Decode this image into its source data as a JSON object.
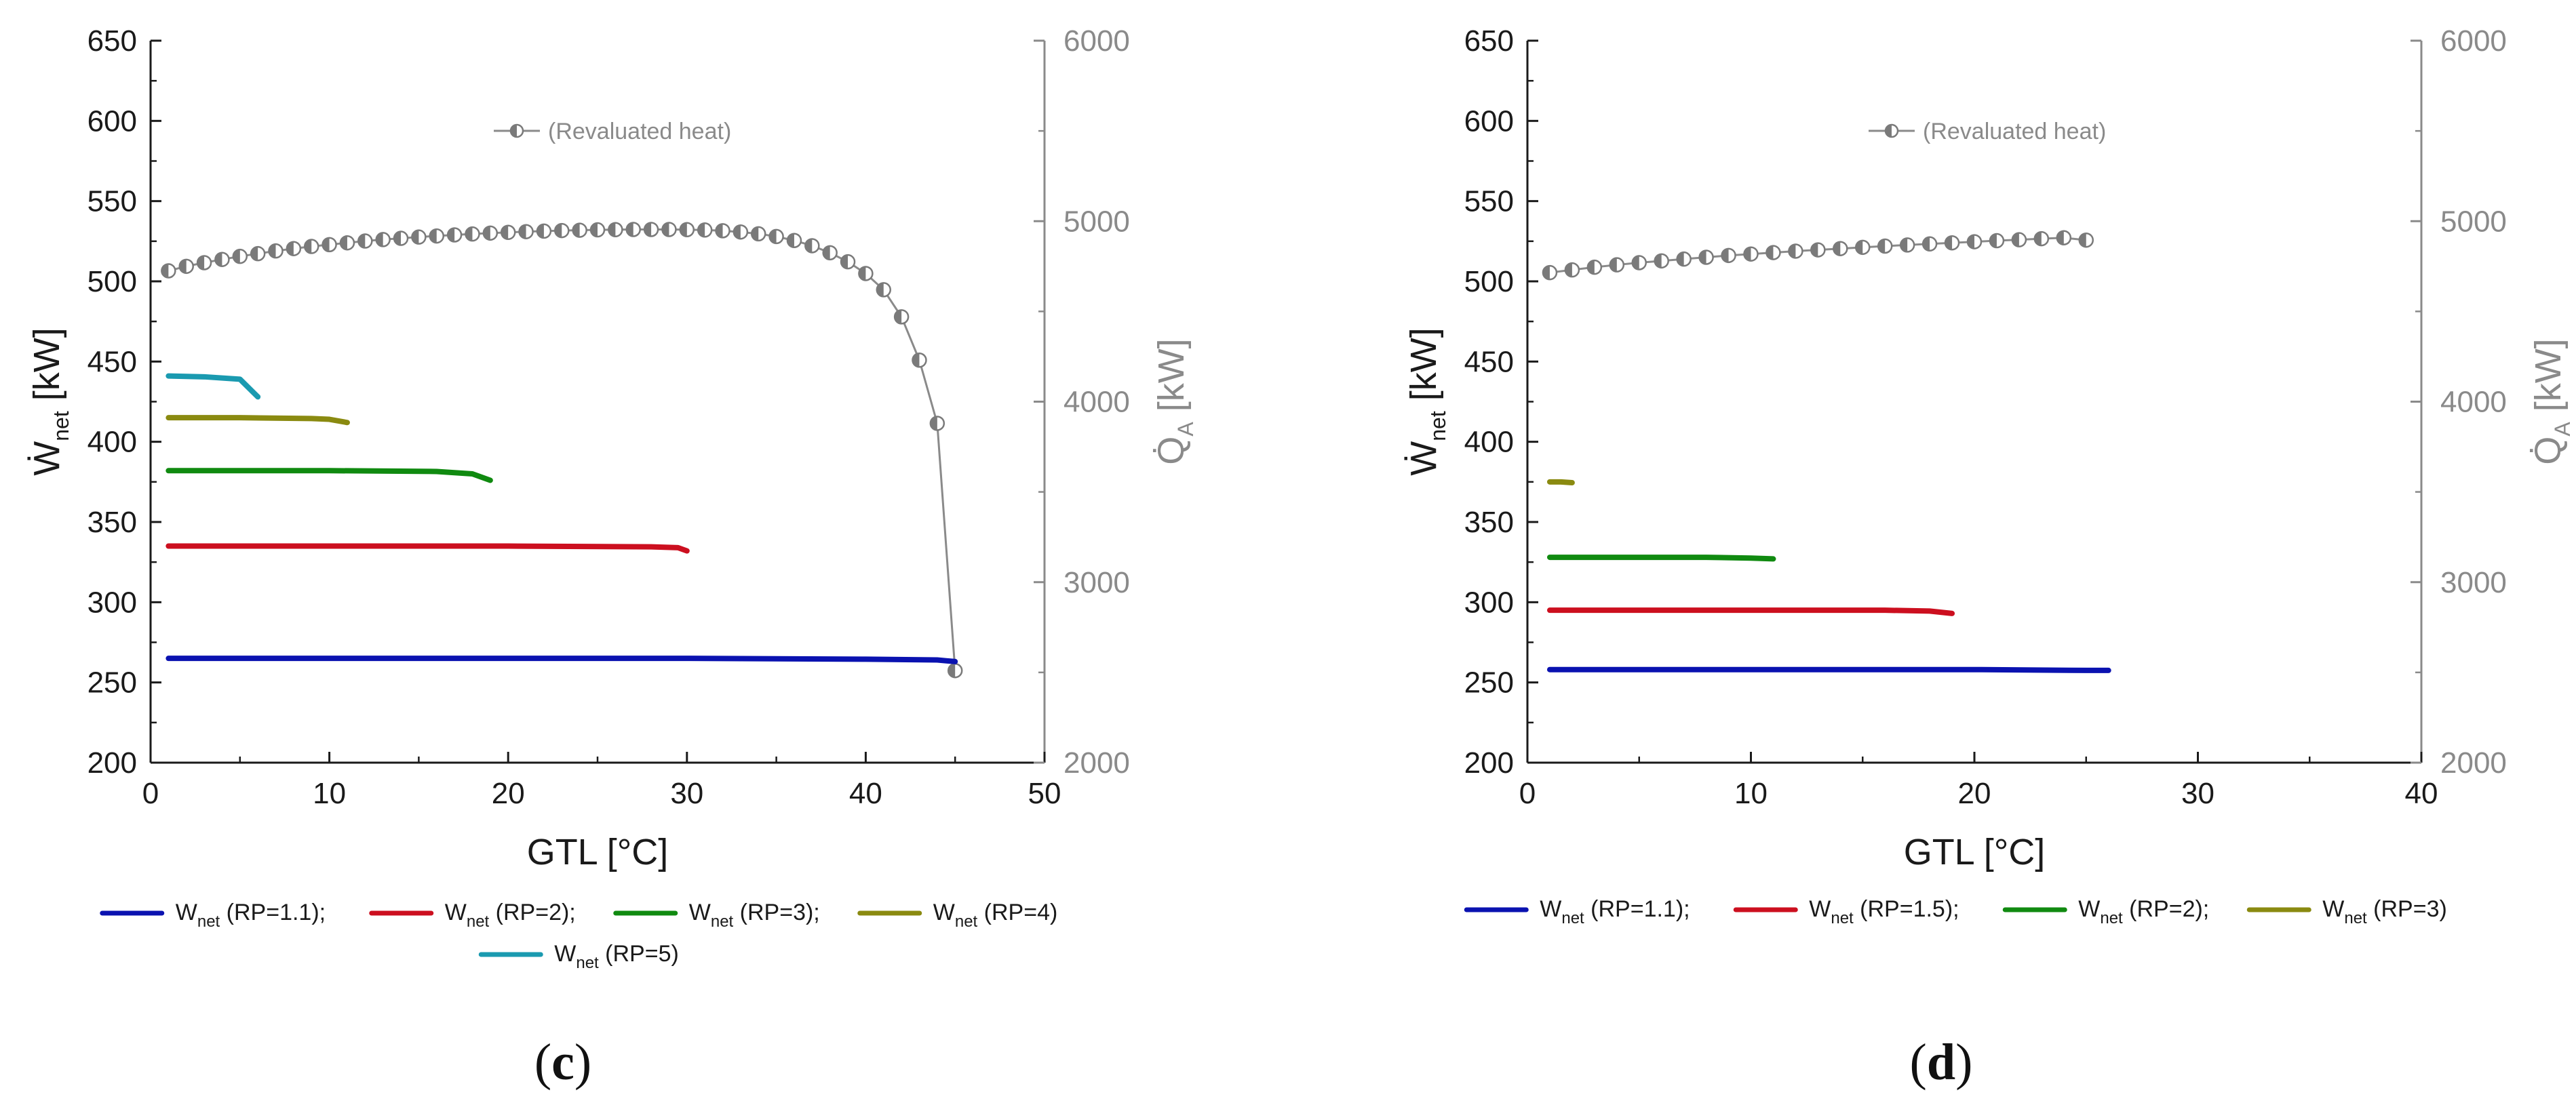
{
  "chart_data": [
    {
      "type": "line",
      "panel_label": {
        "open": "(",
        "letter": "c",
        "close": ")"
      },
      "xlabel": "GTL [°C]",
      "ylabel": {
        "main": "Ẇ",
        "sub": "net",
        "unit": " [kW]"
      },
      "y2label": {
        "main": "Q̇",
        "sub": "A",
        "unit": " [kW]"
      },
      "xlim": [
        0,
        50
      ],
      "ylim": [
        200,
        650
      ],
      "y2lim": [
        2000,
        6000
      ],
      "xticks": [
        0,
        10,
        20,
        30,
        40,
        50
      ],
      "yticks": [
        200,
        250,
        300,
        350,
        400,
        450,
        500,
        550,
        600,
        650
      ],
      "y2ticks": [
        2000,
        3000,
        4000,
        5000,
        6000
      ],
      "annotation": "(Revaluated heat)",
      "series": [
        {
          "name": "W",
          "sub": "net",
          "suffix": " (RP=1.1);",
          "color": "#0a12b0",
          "x": [
            1,
            10,
            20,
            30,
            40,
            44,
            45
          ],
          "y": [
            265,
            265,
            265,
            265,
            264.5,
            264,
            263
          ]
        },
        {
          "name": "W",
          "sub": "net",
          "suffix": " (RP=2);",
          "color": "#cc0f1f",
          "x": [
            1,
            10,
            20,
            28,
            29.5,
            30
          ],
          "y": [
            335,
            335,
            335,
            334.5,
            334,
            332
          ]
        },
        {
          "name": "W",
          "sub": "net",
          "suffix": " (RP=3);",
          "color": "#108a10",
          "x": [
            1,
            10,
            16,
            18,
            19
          ],
          "y": [
            382,
            382,
            381.5,
            380,
            376
          ]
        },
        {
          "name": "W",
          "sub": "net",
          "suffix": " (RP=4)",
          "color": "#8a8a10",
          "x": [
            1,
            5,
            9,
            10,
            11
          ],
          "y": [
            415,
            415,
            414.5,
            414,
            412
          ]
        },
        {
          "name": "W",
          "sub": "net",
          "suffix": " (RP=5)",
          "color": "#1a9ab0",
          "x": [
            1,
            3,
            5,
            6
          ],
          "y": [
            441,
            440.5,
            439,
            428
          ]
        }
      ],
      "secondary_series": {
        "name": "Revaluated heat",
        "color": "#8a8a8a",
        "x": [
          1,
          2,
          3,
          4,
          5,
          6,
          7,
          8,
          9,
          10,
          11,
          12,
          13,
          14,
          15,
          16,
          17,
          18,
          19,
          20,
          21,
          22,
          23,
          24,
          25,
          26,
          27,
          28,
          29,
          30,
          31,
          32,
          33,
          34,
          35,
          36,
          37,
          38,
          39,
          40,
          41,
          42,
          43,
          44,
          45
        ],
        "y": [
          4725,
          4750,
          4770,
          4788,
          4805,
          4820,
          4835,
          4848,
          4860,
          4870,
          4880,
          4890,
          4898,
          4905,
          4912,
          4918,
          4924,
          4929,
          4934,
          4938,
          4942,
          4945,
          4948,
          4950,
          4952,
          4953,
          4954,
          4954,
          4954,
          4953,
          4951,
          4947,
          4940,
          4930,
          4915,
          4893,
          4864,
          4825,
          4775,
          4710,
          4620,
          4470,
          4230,
          3880,
          2510
        ]
      }
    },
    {
      "type": "line",
      "panel_label": {
        "open": "(",
        "letter": "d",
        "close": ")"
      },
      "xlabel": "GTL [°C]",
      "ylabel": {
        "main": "Ẇ",
        "sub": "net",
        "unit": " [kW]"
      },
      "y2label": {
        "main": "Q̇",
        "sub": "A",
        "unit": " [kW]"
      },
      "xlim": [
        0,
        40
      ],
      "ylim": [
        200,
        650
      ],
      "y2lim": [
        2000,
        6000
      ],
      "xticks": [
        0,
        10,
        20,
        30,
        40
      ],
      "yticks": [
        200,
        250,
        300,
        350,
        400,
        450,
        500,
        550,
        600,
        650
      ],
      "y2ticks": [
        2000,
        3000,
        4000,
        5000,
        6000
      ],
      "annotation": "(Revaluated heat)",
      "series": [
        {
          "name": "W",
          "sub": "net",
          "suffix": " (RP=1.1);",
          "color": "#0a12b0",
          "x": [
            1,
            10,
            20,
            25,
            26
          ],
          "y": [
            258,
            258,
            258,
            257.5,
            257.5
          ]
        },
        {
          "name": "W",
          "sub": "net",
          "suffix": " (RP=1.5);",
          "color": "#cc0f1f",
          "x": [
            1,
            10,
            16,
            18,
            19
          ],
          "y": [
            295,
            295,
            295,
            294.5,
            293
          ]
        },
        {
          "name": "W",
          "sub": "net",
          "suffix": " (RP=2);",
          "color": "#108a10",
          "x": [
            1,
            5,
            8,
            10,
            11
          ],
          "y": [
            328,
            328,
            328,
            327.5,
            327
          ]
        },
        {
          "name": "W",
          "sub": "net",
          "suffix": " (RP=3)",
          "color": "#8a8a10",
          "x": [
            1,
            1.5,
            2
          ],
          "y": [
            375,
            375,
            374.5
          ]
        }
      ],
      "secondary_series": {
        "name": "Revaluated heat",
        "color": "#8a8a8a",
        "x": [
          1,
          2,
          3,
          4,
          5,
          6,
          7,
          8,
          9,
          10,
          11,
          12,
          13,
          14,
          15,
          16,
          17,
          18,
          19,
          20,
          21,
          22,
          23,
          24,
          25
        ],
        "y": [
          4715,
          4730,
          4745,
          4758,
          4770,
          4780,
          4790,
          4800,
          4810,
          4818,
          4826,
          4834,
          4841,
          4848,
          4855,
          4862,
          4868,
          4874,
          4880,
          4886,
          4892,
          4897,
          4903,
          4908,
          4895
        ]
      }
    }
  ]
}
